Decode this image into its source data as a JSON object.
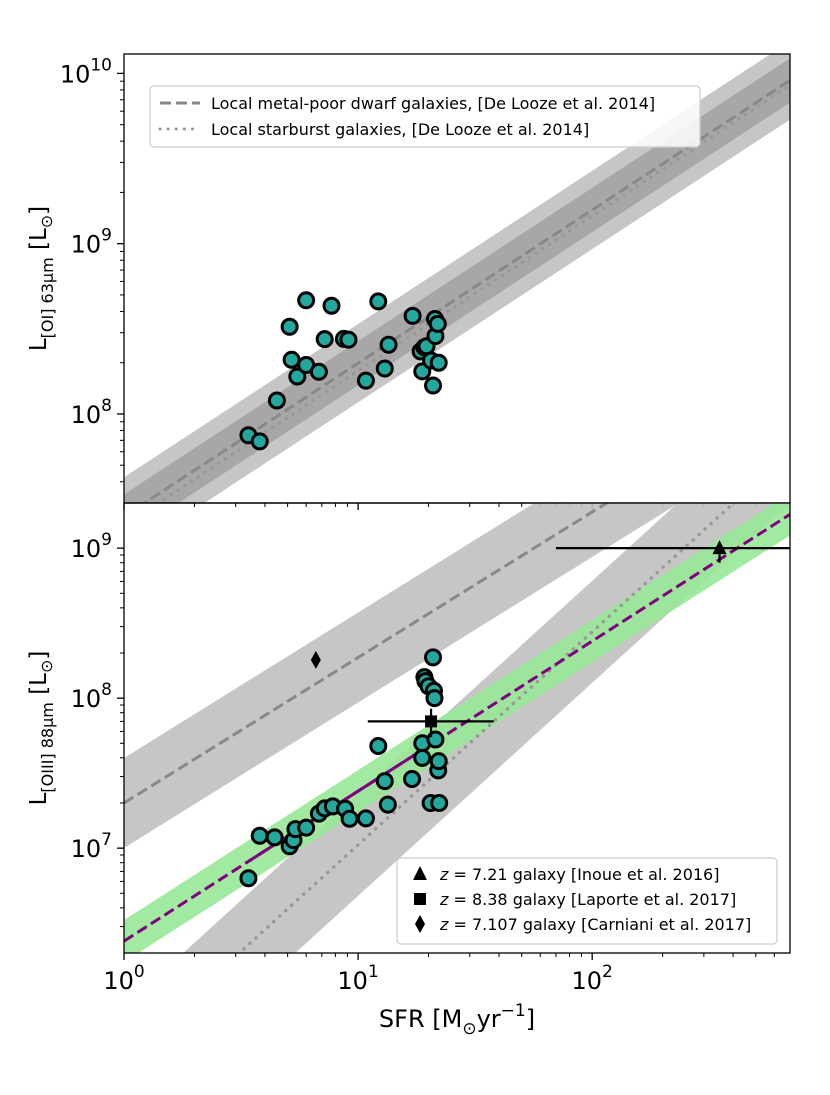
{
  "chart_data": [
    {
      "type": "scatter",
      "panel": "top",
      "xscale": "log",
      "yscale": "log",
      "xlim": [
        1,
        700
      ],
      "ylim": [
        30000000,
        13000000000
      ],
      "ylabel": {
        "main": "L",
        "sub": "[OI] 63μm",
        "unit": "[L",
        "sun": "⊙",
        "close": "]"
      },
      "yticks": [
        {
          "value": 100000000,
          "base": "10",
          "exp": "8"
        },
        {
          "value": 1000000000,
          "base": "10",
          "exp": "9"
        },
        {
          "value": 10000000000,
          "base": "10",
          "exp": "10"
        }
      ],
      "bands": [
        {
          "name": "Local metal-poor dwarf galaxies band (outer)",
          "intercept": 25000000,
          "slope": 0.9,
          "sigma": 0.23,
          "color": "#c0c0c0"
        },
        {
          "name": "Local metal-poor dwarf galaxies band (inner)",
          "intercept": 25000000,
          "slope": 0.9,
          "sigma": 0.13,
          "color": "#a3a3a3"
        }
      ],
      "lines": [
        {
          "name": "Local metal-poor dwarf galaxies, [De Looze et al. 2014]",
          "intercept": 25000000,
          "slope": 0.9,
          "style": "dashed",
          "color": "#888888"
        },
        {
          "name": "Local starburst galaxies, [De Looze et al. 2014]",
          "intercept": 22000000,
          "slope": 0.91,
          "style": "dotted",
          "color": "#999999"
        }
      ],
      "legend": {
        "position": "top-left",
        "entries": [
          {
            "label": "Local metal-poor dwarf galaxies, [De Looze et al. 2014]",
            "style": "dashed"
          },
          {
            "label": "Local starburst galaxies, [De Looze et al. 2014]",
            "style": "dotted"
          }
        ]
      },
      "points": [
        {
          "x": 3.4,
          "y": 75000000
        },
        {
          "x": 3.8,
          "y": 69000000
        },
        {
          "x": 4.5,
          "y": 120000000
        },
        {
          "x": 5.1,
          "y": 325000000
        },
        {
          "x": 5.2,
          "y": 208000000
        },
        {
          "x": 5.5,
          "y": 166000000
        },
        {
          "x": 6.0,
          "y": 465000000
        },
        {
          "x": 6.0,
          "y": 194000000
        },
        {
          "x": 6.8,
          "y": 177000000
        },
        {
          "x": 7.2,
          "y": 275000000
        },
        {
          "x": 7.7,
          "y": 432000000
        },
        {
          "x": 8.7,
          "y": 276000000
        },
        {
          "x": 9.1,
          "y": 273000000
        },
        {
          "x": 10.8,
          "y": 157000000
        },
        {
          "x": 12.2,
          "y": 458000000
        },
        {
          "x": 13.0,
          "y": 185000000
        },
        {
          "x": 13.5,
          "y": 255000000
        },
        {
          "x": 17.1,
          "y": 377000000
        },
        {
          "x": 18.5,
          "y": 233000000
        },
        {
          "x": 18.8,
          "y": 178000000
        },
        {
          "x": 19.2,
          "y": 246000000
        },
        {
          "x": 19.6,
          "y": 250000000
        },
        {
          "x": 20.5,
          "y": 206000000
        },
        {
          "x": 20.9,
          "y": 147000000
        },
        {
          "x": 21.3,
          "y": 361000000
        },
        {
          "x": 21.4,
          "y": 287000000
        },
        {
          "x": 21.9,
          "y": 338000000
        },
        {
          "x": 22.1,
          "y": 200000000
        }
      ]
    },
    {
      "type": "scatter",
      "panel": "bottom",
      "xscale": "log",
      "yscale": "log",
      "xlim": [
        1,
        700
      ],
      "ylim": [
        2000000,
        2000000000
      ],
      "xlabel": {
        "main": "SFR [M",
        "sun": "⊙",
        "mid": "yr",
        "exp": "−1",
        "close": "]"
      },
      "xticks": [
        {
          "value": 1,
          "base": "10",
          "exp": "0"
        },
        {
          "value": 10,
          "base": "10",
          "exp": "1"
        },
        {
          "value": 100,
          "base": "10",
          "exp": "2"
        }
      ],
      "ylabel": {
        "main": "L",
        "sub": "[OIII] 88μm",
        "unit": "[L",
        "sun": "⊙",
        "close": "]"
      },
      "yticks": [
        {
          "value": 10000000,
          "base": "10",
          "exp": "7"
        },
        {
          "value": 100000000,
          "base": "10",
          "exp": "8"
        },
        {
          "value": 1000000000,
          "base": "10",
          "exp": "9"
        }
      ],
      "bands": [
        {
          "name": "Local metal-poor dwarf galaxies band",
          "intercept": 20000000,
          "slope": 0.97,
          "sigma": 0.3,
          "color": "#c0c0c0"
        },
        {
          "name": "Local starburst galaxies band",
          "intercept": 400000,
          "slope": 1.42,
          "sigma": 0.34,
          "color": "#c0c0c0"
        },
        {
          "name": "Best-fit relation band",
          "intercept": 2400000,
          "slope": 1.0,
          "sigma": 0.14,
          "color": "#98e898"
        }
      ],
      "lines": [
        {
          "name": "Local metal-poor dwarf galaxies",
          "intercept": 20000000,
          "slope": 0.97,
          "style": "dashed",
          "color": "#888888"
        },
        {
          "name": "Local starburst galaxies",
          "intercept": 400000,
          "slope": 1.42,
          "style": "dotted",
          "color": "#999999"
        },
        {
          "name": "Best-fit relation (extrapolated)",
          "intercept": 2400000,
          "slope": 1.0,
          "style": "dashed",
          "color": "#800080"
        },
        {
          "name": "Best-fit relation (data range)",
          "intercept": 2400000,
          "slope": 1.0,
          "style": "solid",
          "color": "#800080",
          "xrange": [
            3.4,
            22
          ]
        }
      ],
      "points": [
        {
          "x": 3.4,
          "y": 6300000
        },
        {
          "x": 3.8,
          "y": 12100000
        },
        {
          "x": 4.4,
          "y": 11800000
        },
        {
          "x": 5.1,
          "y": 10300000
        },
        {
          "x": 5.3,
          "y": 11300000
        },
        {
          "x": 5.4,
          "y": 13400000
        },
        {
          "x": 6.0,
          "y": 13700000
        },
        {
          "x": 6.8,
          "y": 17000000
        },
        {
          "x": 7.2,
          "y": 18400000
        },
        {
          "x": 7.8,
          "y": 19000000
        },
        {
          "x": 8.8,
          "y": 18300000
        },
        {
          "x": 9.2,
          "y": 15700000
        },
        {
          "x": 10.8,
          "y": 15800000
        },
        {
          "x": 12.2,
          "y": 48000000
        },
        {
          "x": 13.0,
          "y": 28000000
        },
        {
          "x": 13.4,
          "y": 19500000
        },
        {
          "x": 17.0,
          "y": 28900000
        },
        {
          "x": 18.8,
          "y": 50000000
        },
        {
          "x": 18.8,
          "y": 40000000
        },
        {
          "x": 19.2,
          "y": 138000000
        },
        {
          "x": 19.4,
          "y": 130000000
        },
        {
          "x": 20.0,
          "y": 120000000
        },
        {
          "x": 20.4,
          "y": 20000000
        },
        {
          "x": 20.9,
          "y": 187000000
        },
        {
          "x": 21.1,
          "y": 112000000
        },
        {
          "x": 21.2,
          "y": 100000000
        },
        {
          "x": 21.4,
          "y": 53000000
        },
        {
          "x": 22.0,
          "y": 33000000
        },
        {
          "x": 22.1,
          "y": 38000000
        },
        {
          "x": 22.2,
          "y": 20000000
        }
      ],
      "high_z": [
        {
          "label": "z = 7.21 galaxy [Inoue et al. 2016]",
          "marker": "triangle",
          "x": 350,
          "y": 1000000000,
          "xerr": [
            70,
            700
          ],
          "yerr": [
            800000000,
            1100000000
          ]
        },
        {
          "label": "z = 8.38 galaxy [Laporte et al. 2017]",
          "marker": "square",
          "x": 20.5,
          "y": 70000000,
          "xerr": [
            11,
            38
          ],
          "yerr": [
            55000000,
            85000000
          ]
        },
        {
          "label": "z = 7.107 galaxy [Carniani et al. 2017]",
          "marker": "diamond",
          "x": 6.6,
          "y": 180000000
        }
      ],
      "legend": {
        "position": "bottom-right",
        "entries": [
          {
            "marker": "triangle",
            "z": "7.21",
            "text": "galaxy [Inoue et al. 2016]"
          },
          {
            "marker": "square",
            "z": "8.38",
            "text": "galaxy [Laporte et al. 2017]"
          },
          {
            "marker": "diamond",
            "z": "7.107",
            "text": "galaxy [Carniani et al. 2017]"
          }
        ]
      }
    }
  ],
  "colors": {
    "point_fill": "#23a89d",
    "point_edge": "#000000",
    "fit": "#800080"
  }
}
